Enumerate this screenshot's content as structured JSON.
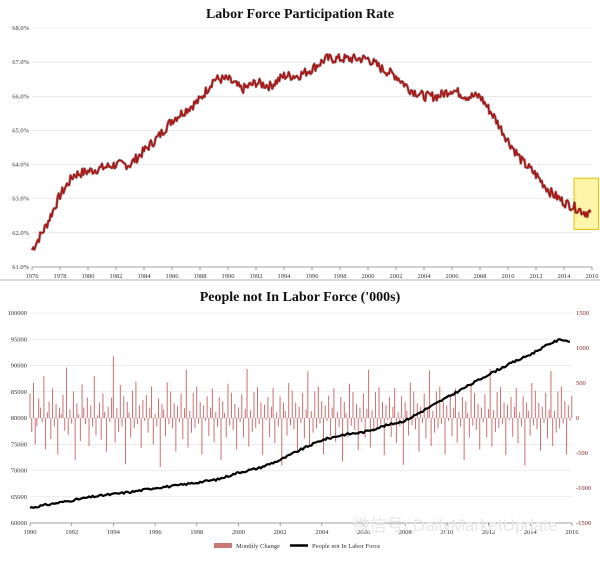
{
  "watermark": "微信号: DailyMarketUpdate",
  "chart_data": [
    {
      "type": "line",
      "title": "Labor Force Participation Rate",
      "x_ticks": [
        "1976",
        "1978",
        "1980",
        "1982",
        "1984",
        "1986",
        "1988",
        "1990",
        "1992",
        "1994",
        "1996",
        "1998",
        "2000",
        "2002",
        "2004",
        "2006",
        "2008",
        "2010",
        "2012",
        "2014",
        "2016"
      ],
      "y_ticks": [
        "61.0%",
        "62.0%",
        "63.0%",
        "64.0%",
        "65.0%",
        "66.0%",
        "67.0%",
        "68.0%"
      ],
      "ylim": [
        61.0,
        68.0
      ],
      "xlim": [
        1976,
        2016
      ],
      "grid": true,
      "line_color": "#b01212",
      "highlight": {
        "x_range": [
          2015.0,
          2015.9
        ],
        "color": "#fff5a8",
        "border": "#e0c000"
      },
      "series": [
        {
          "x": [
            1976.0,
            1977.0,
            1978.0,
            1979.0,
            1980.0,
            1981.0,
            1982.0,
            1983.0,
            1984.0,
            1985.0,
            1986.0,
            1987.0,
            1988.0,
            1989.0,
            1990.0,
            1991.0,
            1992.0,
            1993.0,
            1994.0,
            1995.0,
            1996.0,
            1997.0,
            1998.0,
            1999.0,
            2000.0,
            2001.0,
            2002.0,
            2003.0,
            2004.0,
            2005.0,
            2006.0,
            2007.0,
            2008.0,
            2009.0,
            2010.0,
            2011.0,
            2012.0,
            2013.0,
            2014.0,
            2015.0,
            2015.5,
            2015.9
          ],
          "values": [
            61.5,
            62.2,
            63.1,
            63.7,
            63.8,
            63.9,
            64.0,
            64.0,
            64.4,
            64.8,
            65.3,
            65.6,
            65.9,
            66.5,
            66.5,
            66.2,
            66.4,
            66.3,
            66.6,
            66.6,
            66.8,
            67.1,
            67.1,
            67.1,
            67.1,
            66.8,
            66.6,
            66.2,
            66.0,
            66.0,
            66.2,
            66.0,
            66.0,
            65.4,
            64.7,
            64.1,
            63.7,
            63.2,
            62.9,
            62.7,
            62.6,
            62.6
          ]
        }
      ]
    },
    {
      "type": "bar+line",
      "title": "People not In Labor Force ('000s)",
      "x_ticks": [
        "1990",
        "1992",
        "1994",
        "1996",
        "1998",
        "2000",
        "2002",
        "2004",
        "2006",
        "2008",
        "2010",
        "2012",
        "2014",
        "2016"
      ],
      "xlim": [
        1990,
        2016
      ],
      "y_left_ticks": [
        "60000",
        "65000",
        "70000",
        "75000",
        "80000",
        "85000",
        "90000",
        "95000",
        "100000"
      ],
      "y_left_lim": [
        60000,
        100000
      ],
      "y_right_ticks": [
        "-1500",
        "-1000",
        "-500",
        "0",
        "500",
        "1000",
        "1500"
      ],
      "y_right_lim": [
        -1500,
        1500
      ],
      "legend": [
        "Monthly Change",
        "People not In Labor Force"
      ],
      "legend_position": "bottom",
      "series": [
        {
          "name": "People not In Labor Force",
          "axis": "left",
          "color": "#000000",
          "x": [
            1990,
            1991,
            1992,
            1993,
            1994,
            1995,
            1996,
            1997,
            1998,
            1999,
            2000,
            2001,
            2002,
            2003,
            2004,
            2005,
            2006,
            2007,
            2008,
            2009,
            2010,
            2011,
            2012,
            2013,
            2014,
            2015,
            2015.5,
            2015.9
          ],
          "values": [
            62900,
            63600,
            64300,
            65000,
            65500,
            66000,
            66700,
            67100,
            67700,
            68300,
            69600,
            70500,
            72000,
            74000,
            75800,
            76800,
            77300,
            78500,
            79500,
            81700,
            83900,
            86100,
            88300,
            90300,
            92100,
            94300,
            95000,
            94500
          ]
        },
        {
          "name": "Monthly Change",
          "axis": "right",
          "color": "#b44",
          "x_start": 1990,
          "x_step": 0.0833,
          "values": [
            350,
            -200,
            500,
            -380,
            -120,
            280,
            150,
            -60,
            600,
            -450,
            80,
            230,
            -300,
            420,
            -120,
            200,
            -520,
            150,
            60,
            330,
            -180,
            720,
            -240,
            120,
            -80,
            380,
            -600,
            210,
            50,
            -330,
            480,
            150,
            -90,
            290,
            -400,
            180,
            -120,
            600,
            -250,
            40,
            220,
            -310,
            350,
            90,
            -480,
            160,
            -60,
            290,
            880,
            -350,
            140,
            -200,
            470,
            -120,
            310,
            -660,
            230,
            80,
            -280,
            390,
            -150,
            520,
            -90,
            180,
            -430,
            260,
            -40,
            330,
            -210,
            150,
            450,
            -380,
            60,
            -120,
            280,
            -700,
            200,
            120,
            -260,
            510,
            -90,
            380,
            -150,
            210,
            -480,
            170,
            -60,
            350,
            -300,
            140,
            690,
            -420,
            100,
            -210,
            360,
            -150,
            450,
            -80,
            230,
            -520,
            180,
            -40,
            310,
            -260,
            150,
            420,
            -350,
            90,
            -130,
            300,
            -600,
            240,
            70,
            -280,
            490,
            -110,
            360,
            -170,
            200,
            -450,
            150,
            -60,
            340,
            -280,
            130,
            700,
            -410,
            110,
            -200,
            370,
            -140,
            440,
            -90,
            220,
            -530,
            190,
            -30,
            300,
            -270,
            160,
            430,
            -360,
            80,
            -120,
            310,
            -680,
            220,
            100,
            -250,
            500,
            -100,
            390,
            -160,
            220,
            -470,
            160,
            -70,
            360,
            -290,
            120,
            670,
            -400,
            100,
            -210,
            380,
            -150,
            450,
            -80,
            240,
            -520,
            180,
            -40,
            320,
            -260,
            150,
            420,
            -340,
            90,
            -130,
            300,
            -620,
            230,
            70,
            -280,
            490,
            -110,
            370,
            -170,
            200,
            -460,
            150,
            -60,
            350,
            -280,
            130,
            690,
            -420,
            110,
            -200,
            370,
            -140,
            440,
            -90,
            230,
            -530,
            190,
            -30,
            300,
            -270,
            160,
            430,
            -360,
            80,
            -120,
            310,
            -670,
            230,
            100,
            -250,
            510,
            -100,
            380,
            -160,
            210,
            -480,
            160,
            -70,
            350,
            -290,
            120,
            680,
            -400,
            100,
            -210,
            380,
            -150,
            450,
            -80,
            230,
            -520,
            180,
            -40,
            310,
            -260,
            150,
            420,
            -350,
            90,
            -130,
            300,
            -600,
            240,
            70,
            -280,
            490,
            -110,
            360,
            -170,
            200,
            -450,
            150,
            -60,
            340,
            -280,
            130,
            700,
            -410,
            110,
            -200,
            370,
            -140,
            440,
            -90,
            220,
            -530,
            190,
            -30,
            300,
            -270,
            160,
            430,
            -360,
            80,
            -120,
            310,
            -680,
            220,
            100,
            -250,
            500,
            -100,
            390,
            -160,
            220,
            -470,
            160,
            -70,
            360,
            -290,
            120,
            670,
            -400,
            100,
            -210,
            380,
            -150,
            450,
            -80,
            240,
            -520,
            180,
            -40,
            320,
            -260,
            150,
            420,
            -340,
            90,
            -130,
            300,
            -620,
            230,
            70,
            -280,
            490,
            -110,
            370,
            -170,
            200,
            -460,
            1180,
            -60,
            350,
            -280,
            130,
            690,
            -420,
            110,
            -200,
            370,
            -140,
            440,
            -90,
            230,
            -530,
            190,
            -30,
            300,
            -270,
            160,
            430,
            -360,
            80,
            -120,
            310,
            -670,
            230,
            100,
            -250,
            510
          ]
        }
      ]
    }
  ]
}
